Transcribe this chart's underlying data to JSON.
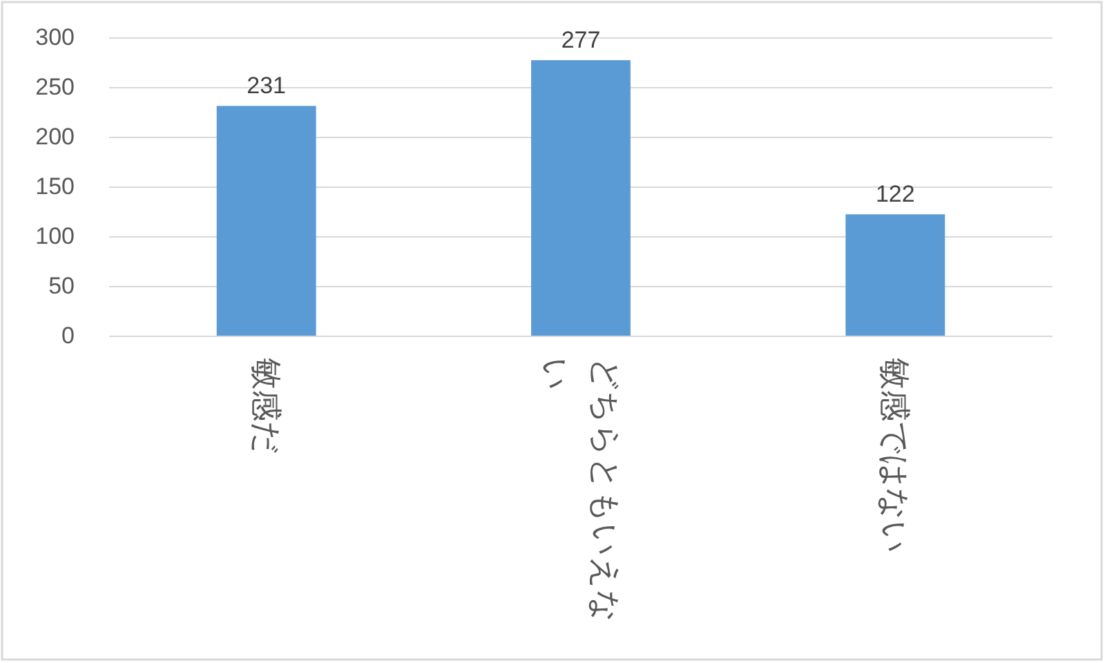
{
  "chart_data": {
    "type": "bar",
    "categories": [
      "敏感だ",
      "どちらともいえない",
      "敏感ではない"
    ],
    "values": [
      231,
      277,
      122
    ],
    "color": "#5b9bd5",
    "ylim": [
      0,
      300
    ],
    "yticks": [
      0,
      50,
      100,
      150,
      200,
      250,
      300
    ],
    "grid": "y",
    "data_labels": true
  }
}
